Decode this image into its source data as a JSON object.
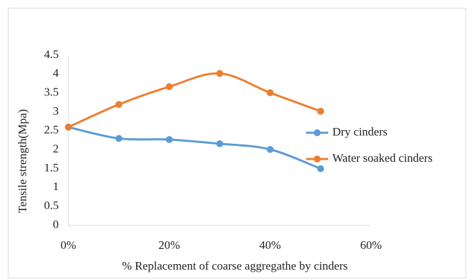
{
  "chart_data": {
    "type": "line",
    "x_label": "% Replacement of coarse aggregathe by cinders",
    "y_label": "Tensile  strength(Mpa)",
    "x": [
      0,
      10,
      20,
      30,
      40,
      50
    ],
    "xlim": [
      0,
      60
    ],
    "xticks": [
      {
        "value": 0,
        "label": "0%"
      },
      {
        "value": 20,
        "label": "20%"
      },
      {
        "value": 40,
        "label": "40%"
      },
      {
        "value": 60,
        "label": "60%"
      }
    ],
    "ylim": [
      0,
      4.5
    ],
    "yticks": [
      0,
      0.5,
      1,
      1.5,
      2,
      2.5,
      3,
      3.5,
      4,
      4.5
    ],
    "series": [
      {
        "name": "Dry cinders",
        "color": "#5b9bd5",
        "values": [
          2.6,
          2.3,
          2.27,
          2.16,
          2.01,
          1.5
        ]
      },
      {
        "name": "Water soaked cinders",
        "color": "#ed7d31",
        "values": [
          2.6,
          3.2,
          3.67,
          4.02,
          3.51,
          3.02
        ]
      }
    ],
    "smooth": true,
    "grid": false,
    "legend": "right"
  }
}
